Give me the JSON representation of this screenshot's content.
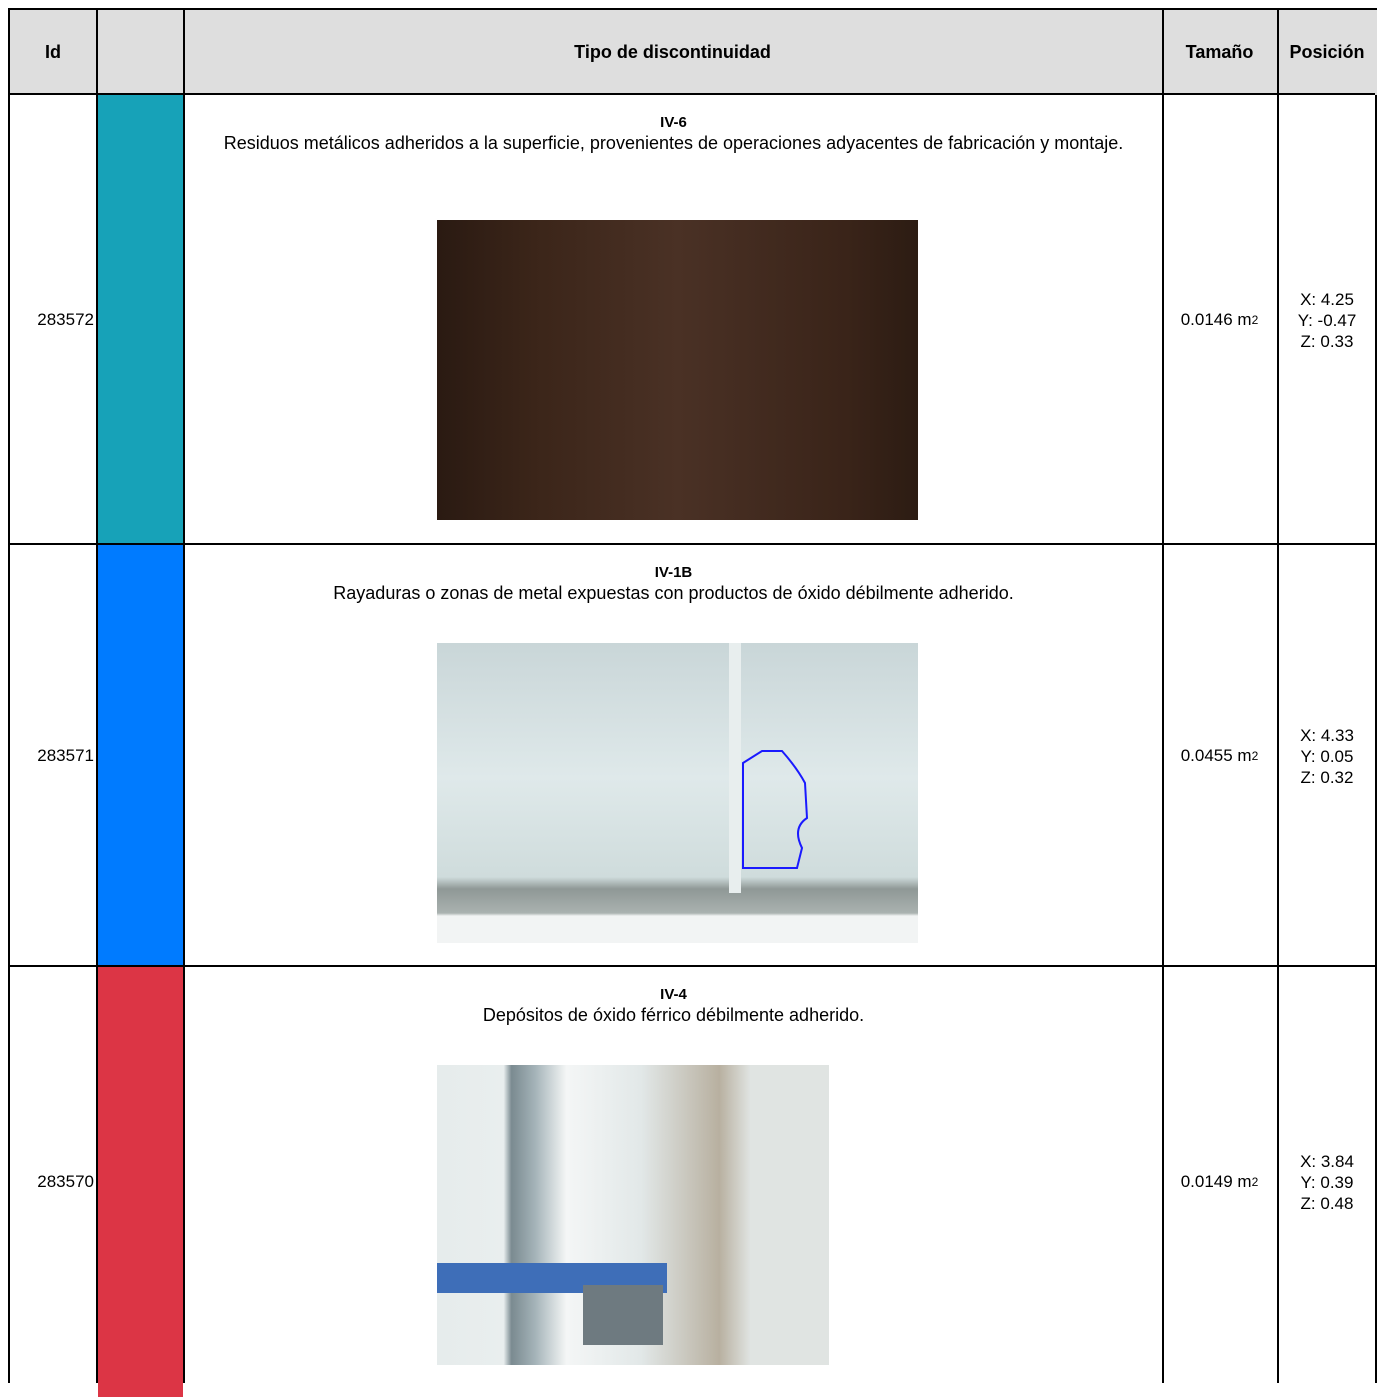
{
  "table": {
    "headers": [
      "Id",
      "Tipo de discontinuidad",
      "Tamaño",
      "Posición"
    ],
    "rows": [
      {
        "id": "283572",
        "color": "#17a2b8",
        "code": "IV-6",
        "description": "Residuos metálicos adheridos a la superficie, provenientes de operaciones adyacentes de fabricación y montaje.",
        "size": "0.0146 m",
        "size_exp": "2",
        "position": [
          "X: 4.25",
          "Y: -0.47",
          "Z: 0.33"
        ]
      },
      {
        "id": "283571",
        "color": "#007bff",
        "code": "IV-1B",
        "description": "Rayaduras o zonas de metal expuestas con productos de óxido débilmente adherido.",
        "size": "0.0455 m",
        "size_exp": "2",
        "position": [
          "X: 4.33",
          "Y: 0.05",
          "Z: 0.32"
        ]
      },
      {
        "id": "283570",
        "color": "#dc3545",
        "code": "IV-4",
        "description": "Depósitos de óxido férrico débilmente adherido.",
        "size": "0.0149 m",
        "size_exp": "2",
        "position": [
          "X: 3.84",
          "Y: 0.39",
          "Z: 0.48"
        ]
      }
    ]
  }
}
